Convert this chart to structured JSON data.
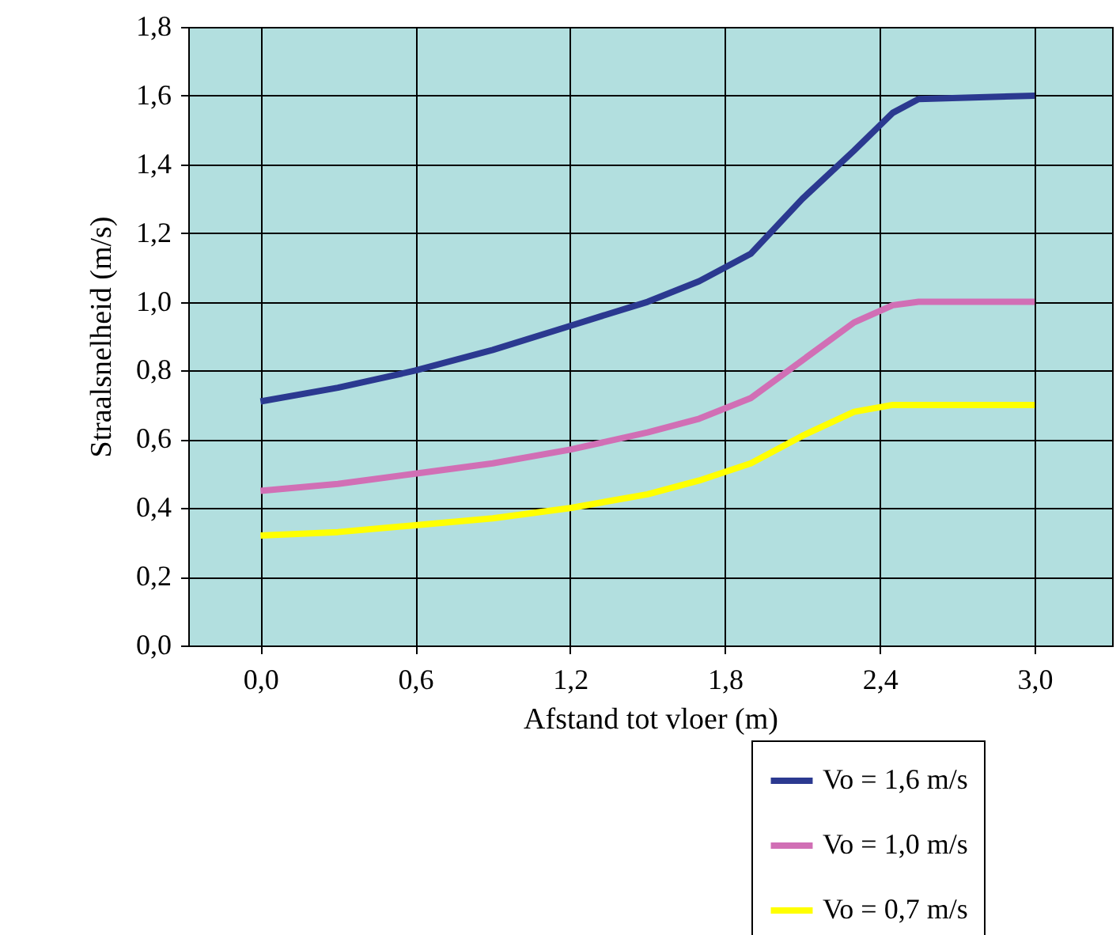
{
  "chart_data": {
    "type": "line",
    "xlabel": "Afstand tot vloer (m)",
    "ylabel": "Straalsnelheid (m/s)",
    "x": [
      0,
      0.3,
      0.6,
      0.9,
      1.2,
      1.5,
      1.7,
      1.9,
      2.1,
      2.3,
      2.45,
      2.55,
      3.0
    ],
    "series": [
      {
        "name": "Vo = 1,6 m/s",
        "color": "#2b3990",
        "values": [
          0.71,
          0.75,
          0.8,
          0.86,
          0.93,
          1.0,
          1.06,
          1.14,
          1.3,
          1.44,
          1.55,
          1.59,
          1.6
        ]
      },
      {
        "name": "Vo = 1,0 m/s",
        "color": "#d16fb5",
        "values": [
          0.45,
          0.47,
          0.5,
          0.53,
          0.57,
          0.62,
          0.66,
          0.72,
          0.83,
          0.94,
          0.99,
          1.0,
          1.0
        ]
      },
      {
        "name": "Vo = 0,7 m/s",
        "color": "#ffff00",
        "values": [
          0.32,
          0.33,
          0.35,
          0.37,
          0.4,
          0.44,
          0.48,
          0.53,
          0.61,
          0.68,
          0.7,
          0.7,
          0.7
        ]
      }
    ],
    "xlim": [
      -0.28,
      3.3
    ],
    "xticks": [
      {
        "value": 0,
        "label": "0,0"
      },
      {
        "value": 0.6,
        "label": "0,6"
      },
      {
        "value": 1.2,
        "label": "1,2"
      },
      {
        "value": 1.8,
        "label": "1,8"
      },
      {
        "value": 2.4,
        "label": "2,4"
      },
      {
        "value": 3.0,
        "label": "3,0"
      }
    ],
    "ylim": [
      0,
      1.8
    ],
    "yticks": [
      {
        "value": 0,
        "label": "0,0"
      },
      {
        "value": 0.2,
        "label": "0,2"
      },
      {
        "value": 0.4,
        "label": "0,4"
      },
      {
        "value": 0.6,
        "label": "0,6"
      },
      {
        "value": 0.8,
        "label": "0,8"
      },
      {
        "value": 1.0,
        "label": "1,0"
      },
      {
        "value": 1.2,
        "label": "1,2"
      },
      {
        "value": 1.4,
        "label": "1,4"
      },
      {
        "value": 1.6,
        "label": "1,6"
      },
      {
        "value": 1.8,
        "label": "1,8"
      }
    ],
    "grid": true,
    "legend": "bottom right",
    "line_style": "solid"
  }
}
